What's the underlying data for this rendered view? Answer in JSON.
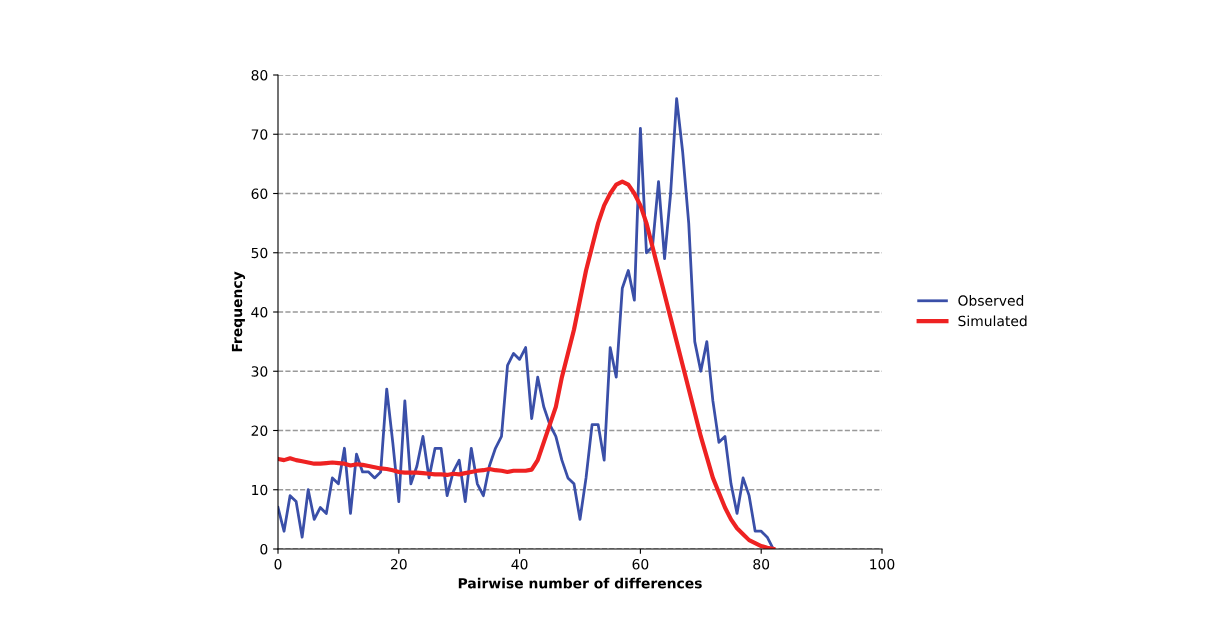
{
  "chart_data": {
    "type": "line",
    "xlabel": "Pairwise number of differences",
    "ylabel": "Frequency",
    "x": [
      0,
      1,
      2,
      3,
      4,
      5,
      6,
      7,
      8,
      9,
      10,
      11,
      12,
      13,
      14,
      15,
      16,
      17,
      18,
      19,
      20,
      21,
      22,
      23,
      24,
      25,
      26,
      27,
      28,
      29,
      30,
      31,
      32,
      33,
      34,
      35,
      36,
      37,
      38,
      39,
      40,
      41,
      42,
      43,
      44,
      45,
      46,
      47,
      48,
      49,
      50,
      51,
      52,
      53,
      54,
      55,
      56,
      57,
      58,
      59,
      60,
      61,
      62,
      63,
      64,
      65,
      66,
      67,
      68,
      69,
      70,
      71,
      72,
      73,
      74,
      75,
      76,
      77,
      78,
      79,
      80,
      81,
      82
    ],
    "series": [
      {
        "name": "Observed",
        "color": "#3a4fa8",
        "values": [
          7,
          3,
          9,
          8,
          2,
          10,
          5,
          7,
          6,
          12,
          11,
          17,
          6,
          16,
          13,
          13,
          12,
          13,
          27,
          18,
          8,
          25,
          11,
          14,
          19,
          12,
          17,
          17,
          9,
          13,
          15,
          8,
          17,
          11,
          9,
          14,
          17,
          19,
          31,
          33,
          32,
          34,
          22,
          29,
          24,
          21,
          19,
          15,
          12,
          11,
          5,
          12,
          21,
          21,
          15,
          34,
          29,
          44,
          47,
          42,
          71,
          50,
          51,
          62,
          49,
          60,
          76,
          67,
          55,
          35,
          30,
          35,
          25,
          18,
          19,
          11,
          6,
          12,
          9,
          3,
          3,
          2,
          0
        ]
      },
      {
        "name": "Simulated",
        "color": "#ee2222",
        "values": [
          15.2,
          15,
          15.3,
          15,
          14.8,
          14.6,
          14.4,
          14.4,
          14.5,
          14.6,
          14.5,
          14.4,
          14.1,
          14.3,
          14.2,
          14,
          13.8,
          13.6,
          13.5,
          13.3,
          13,
          12.9,
          12.9,
          12.9,
          12.8,
          12.7,
          12.6,
          12.6,
          12.5,
          12.7,
          12.6,
          12.8,
          13,
          13.2,
          13.3,
          13.5,
          13.3,
          13.2,
          13,
          13.2,
          13.2,
          13.2,
          13.4,
          15,
          18,
          21,
          24,
          29,
          33,
          37,
          42,
          47,
          51,
          55,
          58,
          60,
          61.5,
          62,
          61.5,
          60,
          58,
          55,
          51,
          47,
          43,
          39,
          35,
          31,
          27,
          23,
          19,
          15.5,
          12,
          9.5,
          7,
          5,
          3.5,
          2.5,
          1.5,
          1,
          0.5,
          0.2,
          0
        ]
      }
    ],
    "xlim": [
      0,
      100
    ],
    "xticks": [
      0,
      20,
      40,
      60,
      80,
      100
    ],
    "ylim": [
      0,
      80
    ],
    "yticks": [
      0,
      10,
      20,
      30,
      40,
      50,
      60,
      70,
      80
    ],
    "grid": "y",
    "legend": "right"
  }
}
